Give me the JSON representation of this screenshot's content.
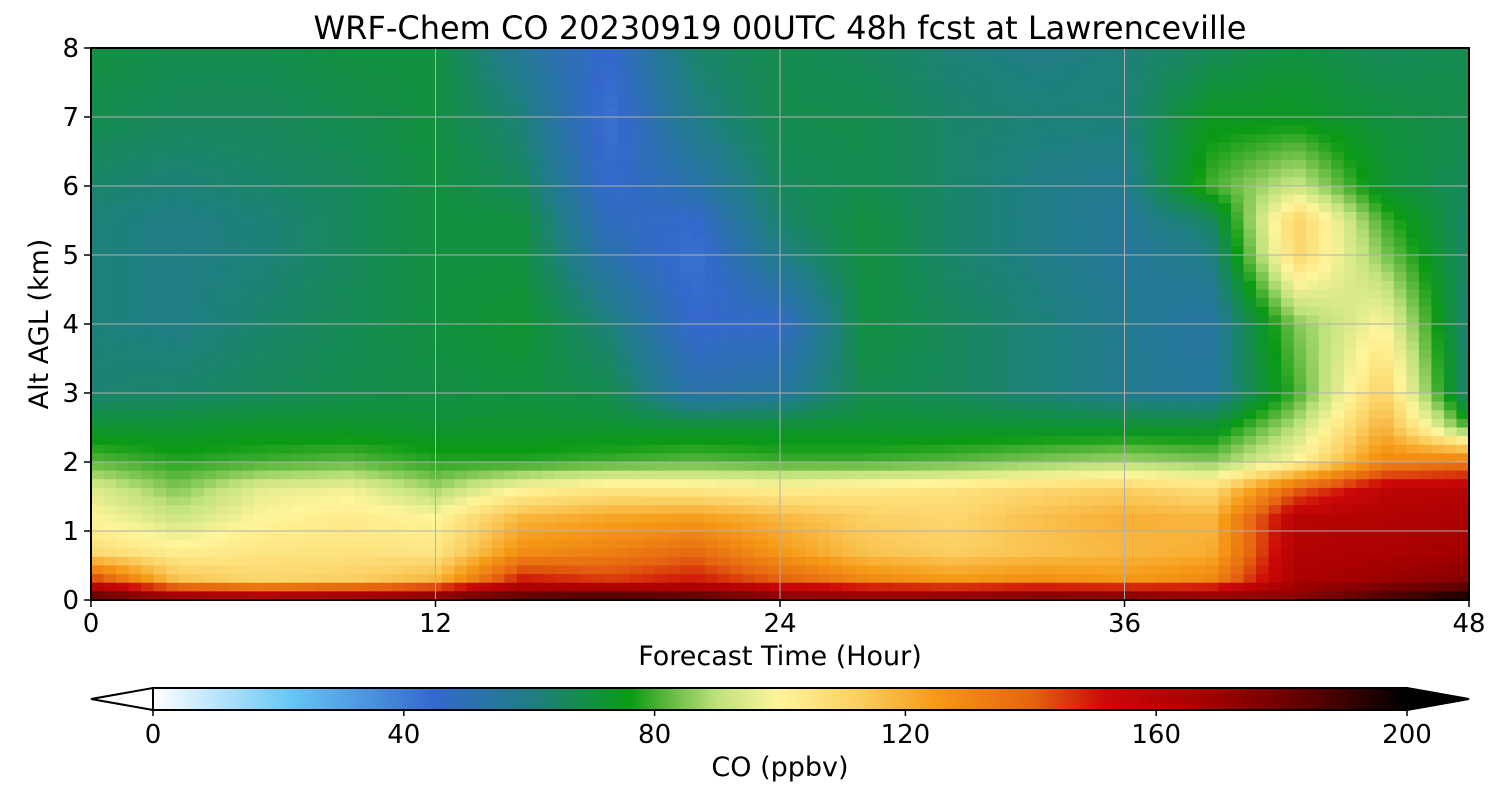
{
  "chart_data": {
    "type": "heatmap",
    "title": "WRF-Chem CO  20230919 00UTC 48h fcst at Lawrenceville",
    "xlabel": "Forecast Time (Hour)",
    "ylabel": "Alt AGL (km)",
    "xlim": [
      0,
      48
    ],
    "ylim": [
      0,
      8
    ],
    "x_ticks": [
      0,
      12,
      24,
      36,
      48
    ],
    "y_ticks": [
      0,
      1,
      2,
      3,
      4,
      5,
      6,
      7,
      8
    ],
    "grid": true,
    "x": [
      0,
      3,
      6,
      9,
      12,
      15,
      18,
      21,
      24,
      27,
      30,
      33,
      36,
      39,
      42,
      45,
      48
    ],
    "y": [
      0,
      0.3,
      0.7,
      1.2,
      1.6,
      2.0,
      2.5,
      3.0,
      4.0,
      5.0,
      5.5,
      6.0,
      7.0,
      8.0
    ],
    "z": [
      [
        190,
        180,
        175,
        180,
        185,
        190,
        195,
        190,
        180,
        180,
        182,
        185,
        185,
        180,
        175,
        190,
        200
      ],
      [
        145,
        115,
        110,
        112,
        118,
        150,
        145,
        150,
        140,
        130,
        125,
        128,
        125,
        130,
        165,
        170,
        175
      ],
      [
        108,
        102,
        105,
        106,
        105,
        128,
        132,
        138,
        125,
        115,
        112,
        115,
        118,
        120,
        162,
        165,
        168
      ],
      [
        100,
        92,
        100,
        103,
        100,
        118,
        122,
        124,
        118,
        112,
        110,
        116,
        120,
        118,
        160,
        162,
        165
      ],
      [
        95,
        85,
        96,
        98,
        88,
        100,
        105,
        104,
        102,
        104,
        106,
        110,
        112,
        108,
        140,
        158,
        160
      ],
      [
        82,
        78,
        80,
        82,
        78,
        78,
        80,
        82,
        80,
        80,
        82,
        85,
        88,
        85,
        100,
        130,
        135
      ],
      [
        72,
        72,
        73,
        73,
        72,
        72,
        72,
        72,
        72,
        72,
        72,
        72,
        72,
        72,
        90,
        120,
        80
      ],
      [
        63,
        64,
        66,
        68,
        69,
        70,
        68,
        52,
        55,
        68,
        66,
        62,
        58,
        56,
        80,
        112,
        62
      ],
      [
        62,
        60,
        64,
        67,
        70,
        72,
        62,
        45,
        46,
        70,
        66,
        62,
        58,
        54,
        85,
        100,
        62
      ],
      [
        62,
        60,
        62,
        66,
        70,
        70,
        52,
        42,
        60,
        70,
        64,
        60,
        56,
        60,
        110,
        85,
        64
      ],
      [
        62,
        60,
        62,
        66,
        70,
        70,
        48,
        45,
        64,
        70,
        64,
        60,
        56,
        65,
        112,
        80,
        64
      ],
      [
        64,
        62,
        64,
        66,
        70,
        66,
        45,
        52,
        66,
        68,
        64,
        60,
        58,
        80,
        92,
        72,
        66
      ],
      [
        68,
        66,
        66,
        68,
        70,
        62,
        42,
        60,
        68,
        68,
        64,
        62,
        62,
        74,
        74,
        70,
        68
      ],
      [
        70,
        68,
        68,
        70,
        70,
        56,
        45,
        64,
        68,
        66,
        62,
        60,
        62,
        66,
        70,
        66,
        68
      ]
    ],
    "colorbar": {
      "label": "CO  (ppbv)",
      "min": 0,
      "max": 200,
      "ticks": [
        0,
        40,
        80,
        120,
        160,
        200
      ],
      "extend": "both",
      "orientation": "horizontal",
      "colors": [
        {
          "v": 0,
          "c": "#ffffff"
        },
        {
          "v": 22,
          "c": "#66c6f5"
        },
        {
          "v": 45,
          "c": "#3468cc"
        },
        {
          "v": 60,
          "c": "#1f7d86"
        },
        {
          "v": 76,
          "c": "#0a9a14"
        },
        {
          "v": 82,
          "c": "#5db83c"
        },
        {
          "v": 90,
          "c": "#bfe27c"
        },
        {
          "v": 100,
          "c": "#fff59a"
        },
        {
          "v": 112,
          "c": "#fbd064"
        },
        {
          "v": 125,
          "c": "#f69a16"
        },
        {
          "v": 140,
          "c": "#e56410"
        },
        {
          "v": 152,
          "c": "#cc0808"
        },
        {
          "v": 168,
          "c": "#a40000"
        },
        {
          "v": 185,
          "c": "#5a0000"
        },
        {
          "v": 200,
          "c": "#000000"
        }
      ]
    }
  }
}
